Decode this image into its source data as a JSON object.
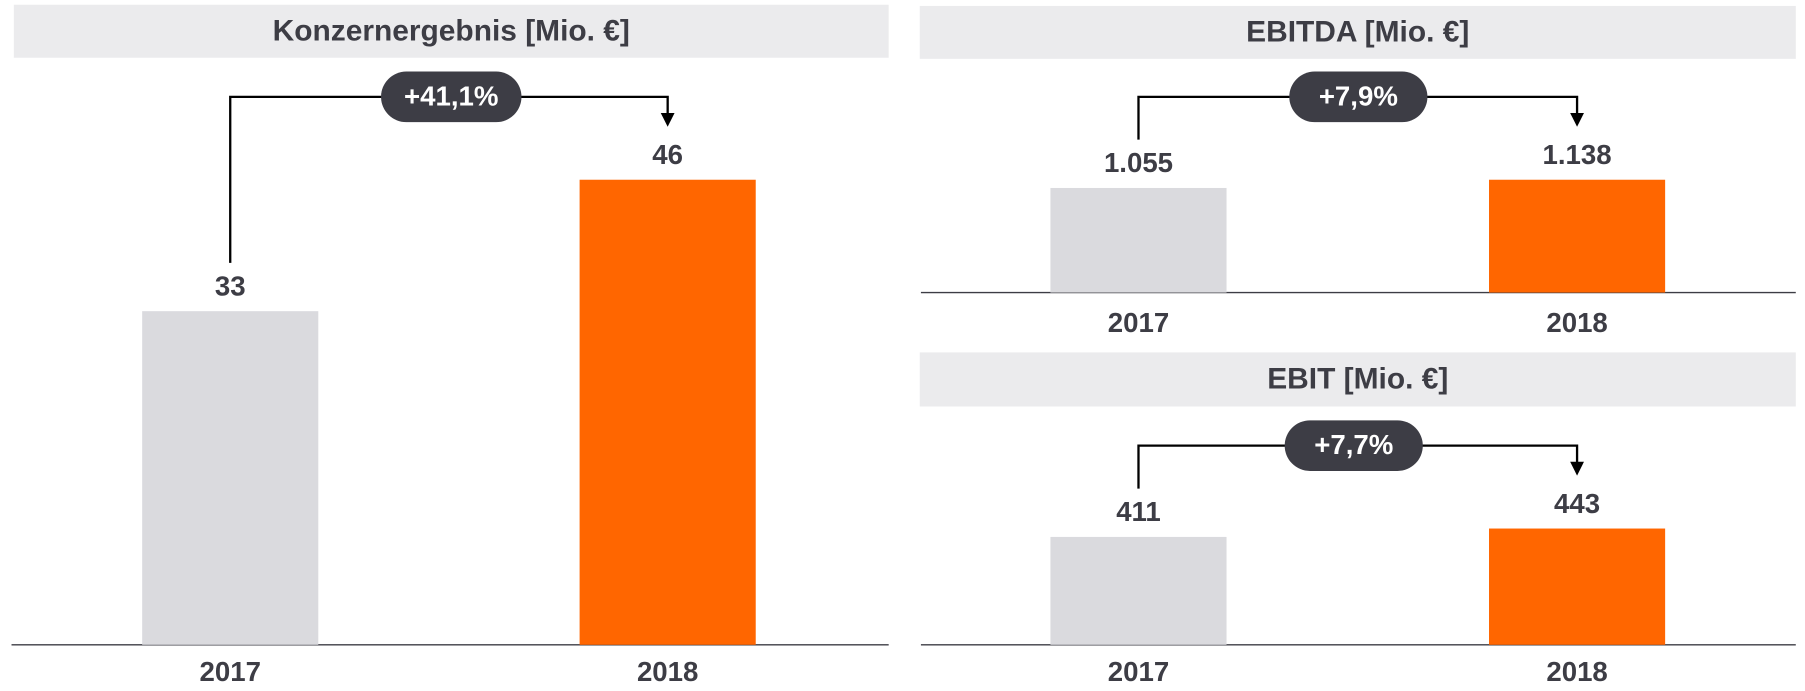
{
  "chart_data": [
    {
      "type": "bar",
      "title": "Konzernergebnis [Mio. €]",
      "categories": [
        "2017",
        "2018"
      ],
      "values": [
        33,
        46
      ],
      "colors": [
        "#dadade",
        "#ff6600"
      ],
      "annotation": "+41,1%"
    },
    {
      "type": "bar",
      "title": "EBITDA [Mio. €]",
      "categories": [
        "2017",
        "2018"
      ],
      "values": [
        1055,
        1138
      ],
      "value_labels": [
        "1.055",
        "1.138"
      ],
      "colors": [
        "#dadade",
        "#ff6600"
      ],
      "annotation": "+7,9%"
    },
    {
      "type": "bar",
      "title": "EBIT [Mio. €]",
      "categories": [
        "2017",
        "2018"
      ],
      "values": [
        411,
        443
      ],
      "colors": [
        "#dadade",
        "#ff6600"
      ],
      "annotation": "+7,7%"
    }
  ]
}
